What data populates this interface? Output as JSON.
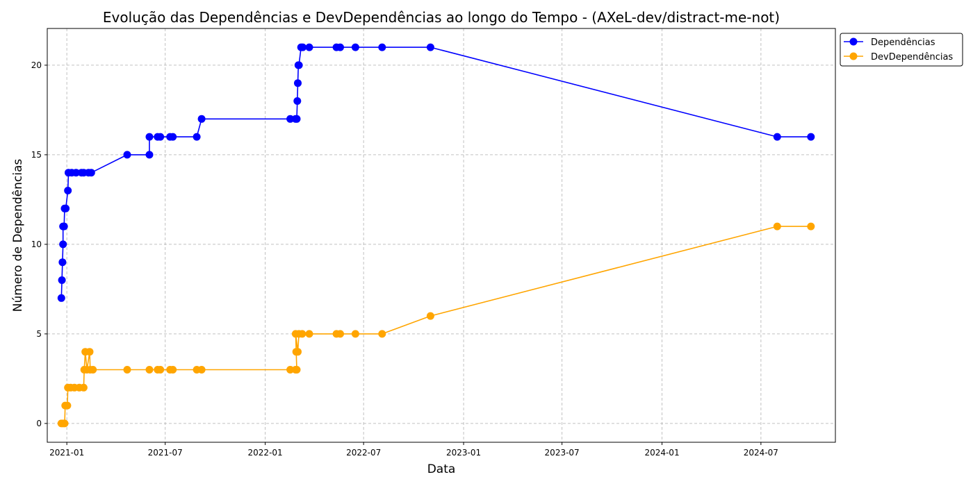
{
  "chart_data": {
    "type": "line",
    "title": "Evolução das Dependências e DevDependências ao longo do Tempo - (AXeL-dev/distract-me-not)",
    "xlabel": "Data",
    "ylabel": "Número de Dependências",
    "x_type": "date",
    "xlim": [
      "2020-11-26",
      "2024-11-15"
    ],
    "ylim": [
      -1.05,
      22.05
    ],
    "x_ticks": [
      "2021-01-01",
      "2021-07-01",
      "2022-01-01",
      "2022-07-01",
      "2023-01-01",
      "2023-07-01",
      "2024-01-01",
      "2024-07-01"
    ],
    "x_tick_labels": [
      "2021-01",
      "2021-07",
      "2022-01",
      "2022-07",
      "2023-01",
      "2023-07",
      "2024-01",
      "2024-07"
    ],
    "y_ticks": [
      0,
      5,
      10,
      15,
      20
    ],
    "y_tick_labels": [
      "0",
      "5",
      "10",
      "15",
      "20"
    ],
    "grid": true,
    "legend_position": "outside-top-right",
    "series": [
      {
        "name": "Dependências",
        "color": "#0000ff",
        "marker": "circle",
        "points": [
          [
            "2020-12-22",
            7
          ],
          [
            "2020-12-23",
            8
          ],
          [
            "2020-12-24",
            9
          ],
          [
            "2020-12-25",
            10
          ],
          [
            "2020-12-25",
            11
          ],
          [
            "2020-12-27",
            11
          ],
          [
            "2020-12-28",
            12
          ],
          [
            "2020-12-30",
            12
          ],
          [
            "2021-01-03",
            13
          ],
          [
            "2021-01-04",
            14
          ],
          [
            "2021-01-10",
            14
          ],
          [
            "2021-01-18",
            14
          ],
          [
            "2021-01-28",
            14
          ],
          [
            "2021-02-01",
            14
          ],
          [
            "2021-02-10",
            14
          ],
          [
            "2021-02-15",
            14
          ],
          [
            "2021-04-22",
            15
          ],
          [
            "2021-06-02",
            15
          ],
          [
            "2021-06-02",
            16
          ],
          [
            "2021-06-17",
            16
          ],
          [
            "2021-06-22",
            16
          ],
          [
            "2021-07-10",
            16
          ],
          [
            "2021-07-15",
            16
          ],
          [
            "2021-08-28",
            16
          ],
          [
            "2021-09-06",
            17
          ],
          [
            "2022-02-16",
            17
          ],
          [
            "2022-02-26",
            17
          ],
          [
            "2022-02-28",
            17
          ],
          [
            "2022-03-01",
            18
          ],
          [
            "2022-03-02",
            19
          ],
          [
            "2022-03-03",
            20
          ],
          [
            "2022-03-04",
            20
          ],
          [
            "2022-03-08",
            21
          ],
          [
            "2022-03-11",
            21
          ],
          [
            "2022-03-23",
            21
          ],
          [
            "2022-05-12",
            21
          ],
          [
            "2022-05-19",
            21
          ],
          [
            "2022-06-16",
            21
          ],
          [
            "2022-08-04",
            21
          ],
          [
            "2022-11-01",
            21
          ],
          [
            "2024-07-31",
            16
          ],
          [
            "2024-10-01",
            16
          ]
        ]
      },
      {
        "name": "DevDependências",
        "color": "#ffa500",
        "marker": "circle",
        "points": [
          [
            "2020-12-22",
            0
          ],
          [
            "2020-12-25",
            0
          ],
          [
            "2020-12-28",
            0
          ],
          [
            "2020-12-29",
            1
          ],
          [
            "2021-01-02",
            1
          ],
          [
            "2021-01-03",
            2
          ],
          [
            "2021-01-08",
            2
          ],
          [
            "2021-01-15",
            2
          ],
          [
            "2021-01-24",
            2
          ],
          [
            "2021-02-01",
            2
          ],
          [
            "2021-02-02",
            3
          ],
          [
            "2021-02-04",
            4
          ],
          [
            "2021-02-07",
            3
          ],
          [
            "2021-02-12",
            4
          ],
          [
            "2021-02-13",
            3
          ],
          [
            "2021-02-18",
            3
          ],
          [
            "2021-04-22",
            3
          ],
          [
            "2021-06-02",
            3
          ],
          [
            "2021-06-17",
            3
          ],
          [
            "2021-06-22",
            3
          ],
          [
            "2021-07-10",
            3
          ],
          [
            "2021-07-15",
            3
          ],
          [
            "2021-08-28",
            3
          ],
          [
            "2021-09-06",
            3
          ],
          [
            "2022-02-16",
            3
          ],
          [
            "2022-02-26",
            3
          ],
          [
            "2022-02-28",
            3
          ],
          [
            "2022-02-27",
            4
          ],
          [
            "2022-02-26",
            5
          ],
          [
            "2022-03-02",
            4
          ],
          [
            "2022-03-04",
            5
          ],
          [
            "2022-03-10",
            5
          ],
          [
            "2022-03-23",
            5
          ],
          [
            "2022-05-12",
            5
          ],
          [
            "2022-05-19",
            5
          ],
          [
            "2022-06-16",
            5
          ],
          [
            "2022-08-04",
            5
          ],
          [
            "2022-11-01",
            6
          ],
          [
            "2024-07-31",
            11
          ],
          [
            "2024-10-01",
            11
          ]
        ]
      }
    ]
  }
}
